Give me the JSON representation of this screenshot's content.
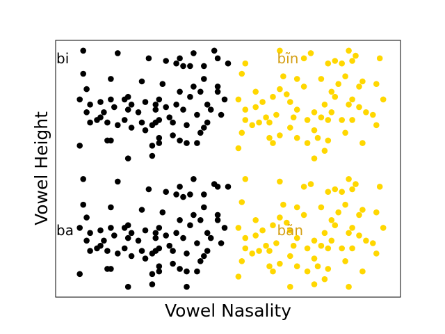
{
  "chart_data": {
    "type": "scatter",
    "xlabel": "Vowel Nasality",
    "ylabel": "Vowel Height",
    "xlim": [
      0,
      10
    ],
    "ylim": [
      0,
      10
    ],
    "grid": false,
    "ticks": false,
    "annotations": [
      {
        "text": "bi",
        "x": 0.0,
        "y": 9.3,
        "color": "#000000"
      },
      {
        "text": "ba",
        "x": 0.0,
        "y": 2.6,
        "color": "#000000"
      },
      {
        "text": "bĩn",
        "x": 6.4,
        "y": 9.3,
        "color": "#d4a017"
      },
      {
        "text": "bãn",
        "x": 6.4,
        "y": 2.6,
        "color": "#d4a017"
      }
    ],
    "series": [
      {
        "color": "#000000",
        "points": [
          [
            0.8,
            9.6
          ],
          [
            1.8,
            9.5
          ],
          [
            2.7,
            9.3
          ],
          [
            3.2,
            9.2
          ],
          [
            3.5,
            9.1
          ],
          [
            3.7,
            9.0
          ],
          [
            3.9,
            9.0
          ],
          [
            4.3,
            9.0
          ],
          [
            3.6,
            9.3
          ],
          [
            4.0,
            9.5
          ],
          [
            4.6,
            9.6
          ],
          [
            4.7,
            9.3
          ],
          [
            5.0,
            9.1
          ],
          [
            0.8,
            8.7
          ],
          [
            1.6,
            8.5
          ],
          [
            2.5,
            8.4
          ],
          [
            3.1,
            8.3
          ],
          [
            3.6,
            8.0
          ],
          [
            4.0,
            8.2
          ],
          [
            4.2,
            8.0
          ],
          [
            4.3,
            8.5
          ],
          [
            4.7,
            8.2
          ],
          [
            4.7,
            8.0
          ],
          [
            0.9,
            8.1
          ],
          [
            0.7,
            7.7
          ],
          [
            1.0,
            7.5
          ],
          [
            1.3,
            7.6
          ],
          [
            1.6,
            7.7
          ],
          [
            1.7,
            7.4
          ],
          [
            2.0,
            7.7
          ],
          [
            2.1,
            7.8
          ],
          [
            2.2,
            7.5
          ],
          [
            2.6,
            7.6
          ],
          [
            2.9,
            7.5
          ],
          [
            3.0,
            7.7
          ],
          [
            3.2,
            7.4
          ],
          [
            3.5,
            7.5
          ],
          [
            3.9,
            7.8
          ],
          [
            4.4,
            7.5
          ],
          [
            4.9,
            7.7
          ],
          [
            0.9,
            7.2
          ],
          [
            1.3,
            7.0
          ],
          [
            1.4,
            7.2
          ],
          [
            2.1,
            7.3
          ],
          [
            2.4,
            7.2
          ],
          [
            2.9,
            7.3
          ],
          [
            3.3,
            7.0
          ],
          [
            3.7,
            7.3
          ],
          [
            4.1,
            7.1
          ],
          [
            4.5,
            7.3
          ],
          [
            4.8,
            7.1
          ],
          [
            1.0,
            6.8
          ],
          [
            1.2,
            6.9
          ],
          [
            1.5,
            6.8
          ],
          [
            1.8,
            6.7
          ],
          [
            2.0,
            6.9
          ],
          [
            2.2,
            6.6
          ],
          [
            2.5,
            6.8
          ],
          [
            2.8,
            6.7
          ],
          [
            2.9,
            6.8
          ],
          [
            3.0,
            6.9
          ],
          [
            3.4,
            6.8
          ],
          [
            3.8,
            6.7
          ],
          [
            4.4,
            6.8
          ],
          [
            4.3,
            6.6
          ],
          [
            2.6,
            6.5
          ],
          [
            3.0,
            6.2
          ],
          [
            3.4,
            6.3
          ],
          [
            3.6,
            6.1
          ],
          [
            3.8,
            6.0
          ],
          [
            4.2,
            6.4
          ],
          [
            1.5,
            6.1
          ],
          [
            1.6,
            6.1
          ],
          [
            0.7,
            5.9
          ],
          [
            3.0,
            6.0
          ],
          [
            2.8,
            5.9
          ],
          [
            4.1,
            6.0
          ],
          [
            2.1,
            5.4
          ],
          [
            2.8,
            5.5
          ],
          [
            0.8,
            4.6
          ],
          [
            1.8,
            4.5
          ],
          [
            2.7,
            4.2
          ],
          [
            3.2,
            4.1
          ],
          [
            3.5,
            4.0
          ],
          [
            3.7,
            3.9
          ],
          [
            3.9,
            4.0
          ],
          [
            4.3,
            4.0
          ],
          [
            3.6,
            4.3
          ],
          [
            4.0,
            4.6
          ],
          [
            4.6,
            4.4
          ],
          [
            4.7,
            4.3
          ],
          [
            5.0,
            4.3
          ],
          [
            0.8,
            3.6
          ],
          [
            1.6,
            3.5
          ],
          [
            2.5,
            3.4
          ],
          [
            3.1,
            3.3
          ],
          [
            3.6,
            3.0
          ],
          [
            4.0,
            3.2
          ],
          [
            4.2,
            3.0
          ],
          [
            4.3,
            3.5
          ],
          [
            4.7,
            3.2
          ],
          [
            4.7,
            3.0
          ],
          [
            0.9,
            3.1
          ],
          [
            0.7,
            2.7
          ],
          [
            1.0,
            2.5
          ],
          [
            1.3,
            2.6
          ],
          [
            1.6,
            2.7
          ],
          [
            1.7,
            2.4
          ],
          [
            2.0,
            2.7
          ],
          [
            2.1,
            2.8
          ],
          [
            2.2,
            2.5
          ],
          [
            2.6,
            2.6
          ],
          [
            2.9,
            2.5
          ],
          [
            3.0,
            2.7
          ],
          [
            3.2,
            2.4
          ],
          [
            3.5,
            2.5
          ],
          [
            3.9,
            2.8
          ],
          [
            4.4,
            2.5
          ],
          [
            4.9,
            2.7
          ],
          [
            0.9,
            2.2
          ],
          [
            1.3,
            2.0
          ],
          [
            1.4,
            2.2
          ],
          [
            2.1,
            2.3
          ],
          [
            2.4,
            2.2
          ],
          [
            2.9,
            2.3
          ],
          [
            3.3,
            2.0
          ],
          [
            3.7,
            2.3
          ],
          [
            4.1,
            2.1
          ],
          [
            4.5,
            2.3
          ],
          [
            4.8,
            2.1
          ],
          [
            1.0,
            1.8
          ],
          [
            1.2,
            1.9
          ],
          [
            1.5,
            1.8
          ],
          [
            1.8,
            1.7
          ],
          [
            2.0,
            1.9
          ],
          [
            2.2,
            1.6
          ],
          [
            2.5,
            1.8
          ],
          [
            2.8,
            1.7
          ],
          [
            2.9,
            1.8
          ],
          [
            3.0,
            1.9
          ],
          [
            3.4,
            1.8
          ],
          [
            3.8,
            1.7
          ],
          [
            4.4,
            1.8
          ],
          [
            4.3,
            1.6
          ],
          [
            2.6,
            1.5
          ],
          [
            3.0,
            1.2
          ],
          [
            3.4,
            1.3
          ],
          [
            3.6,
            1.1
          ],
          [
            3.8,
            1.0
          ],
          [
            4.2,
            1.4
          ],
          [
            1.5,
            1.1
          ],
          [
            1.6,
            1.1
          ],
          [
            0.7,
            0.9
          ],
          [
            3.0,
            1.0
          ],
          [
            2.8,
            0.9
          ],
          [
            4.1,
            1.0
          ],
          [
            2.1,
            0.4
          ],
          [
            2.8,
            0.5
          ],
          [
            3.8,
            0.4
          ]
        ]
      },
      {
        "color": "#ffd700",
        "points": [
          [
            5.5,
            9.1
          ],
          [
            6.5,
            9.6
          ],
          [
            7.2,
            9.3
          ],
          [
            7.9,
            9.1
          ],
          [
            8.1,
            9.2
          ],
          [
            8.3,
            9.1
          ],
          [
            8.6,
            9.2
          ],
          [
            8.7,
            9.4
          ],
          [
            8.5,
            9.6
          ],
          [
            9.4,
            9.3
          ],
          [
            7.4,
            9.5
          ],
          [
            5.4,
            8.7
          ],
          [
            6.6,
            8.6
          ],
          [
            7.0,
            8.5
          ],
          [
            7.2,
            8.2
          ],
          [
            7.7,
            8.5
          ],
          [
            8.2,
            8.3
          ],
          [
            8.4,
            8.6
          ],
          [
            8.8,
            8.2
          ],
          [
            8.9,
            8.4
          ],
          [
            9.3,
            8.3
          ],
          [
            5.8,
            8.0
          ],
          [
            6.0,
            7.6
          ],
          [
            6.8,
            7.6
          ],
          [
            6.3,
            7.8
          ],
          [
            6.7,
            7.9
          ],
          [
            6.5,
            8.1
          ],
          [
            8.0,
            8.0
          ],
          [
            8.1,
            7.8
          ],
          [
            8.6,
            7.7
          ],
          [
            7.8,
            7.5
          ],
          [
            5.3,
            7.7
          ],
          [
            5.5,
            7.3
          ],
          [
            5.8,
            7.4
          ],
          [
            7.0,
            7.3
          ],
          [
            7.5,
            7.2
          ],
          [
            8.0,
            7.2
          ],
          [
            8.5,
            7.5
          ],
          [
            8.8,
            7.4
          ],
          [
            9.2,
            7.1
          ],
          [
            9.5,
            7.7
          ],
          [
            5.5,
            6.9
          ],
          [
            5.9,
            6.8
          ],
          [
            6.1,
            7.0
          ],
          [
            6.4,
            7.1
          ],
          [
            6.9,
            7.0
          ],
          [
            7.3,
            6.9
          ],
          [
            7.7,
            7.0
          ],
          [
            7.9,
            6.9
          ],
          [
            8.3,
            6.9
          ],
          [
            8.6,
            6.9
          ],
          [
            9.0,
            7.2
          ],
          [
            9.3,
            6.7
          ],
          [
            5.7,
            6.7
          ],
          [
            6.2,
            6.8
          ],
          [
            6.8,
            6.6
          ],
          [
            5.4,
            6.4
          ],
          [
            6.2,
            6.2
          ],
          [
            6.5,
            6.3
          ],
          [
            7.0,
            6.2
          ],
          [
            7.5,
            6.5
          ],
          [
            7.6,
            6.2
          ],
          [
            7.9,
            6.1
          ],
          [
            8.4,
            6.4
          ],
          [
            5.3,
            5.8
          ],
          [
            6.3,
            6.0
          ],
          [
            7.3,
            6.0
          ],
          [
            7.8,
            5.7
          ],
          [
            8.9,
            6.0
          ],
          [
            7.5,
            5.4
          ],
          [
            5.5,
            4.6
          ],
          [
            6.5,
            4.5
          ],
          [
            7.2,
            4.3
          ],
          [
            7.9,
            4.1
          ],
          [
            8.1,
            4.2
          ],
          [
            8.3,
            4.1
          ],
          [
            8.6,
            4.2
          ],
          [
            8.7,
            4.4
          ],
          [
            8.5,
            4.6
          ],
          [
            9.4,
            4.3
          ],
          [
            7.4,
            4.4
          ],
          [
            5.4,
            3.7
          ],
          [
            6.6,
            3.6
          ],
          [
            7.0,
            3.5
          ],
          [
            7.2,
            3.2
          ],
          [
            7.7,
            3.5
          ],
          [
            8.2,
            3.3
          ],
          [
            8.4,
            3.6
          ],
          [
            8.8,
            3.2
          ],
          [
            8.9,
            3.4
          ],
          [
            9.3,
            3.3
          ],
          [
            5.8,
            3.0
          ],
          [
            6.0,
            2.6
          ],
          [
            6.8,
            2.6
          ],
          [
            6.3,
            2.8
          ],
          [
            6.7,
            2.9
          ],
          [
            6.5,
            3.1
          ],
          [
            8.0,
            3.0
          ],
          [
            8.1,
            2.8
          ],
          [
            8.6,
            2.7
          ],
          [
            7.8,
            2.5
          ],
          [
            5.3,
            2.7
          ],
          [
            5.5,
            2.3
          ],
          [
            5.8,
            2.4
          ],
          [
            7.0,
            2.3
          ],
          [
            7.5,
            2.2
          ],
          [
            8.0,
            2.2
          ],
          [
            8.5,
            2.5
          ],
          [
            8.8,
            2.4
          ],
          [
            9.2,
            2.1
          ],
          [
            9.5,
            2.7
          ],
          [
            5.5,
            1.9
          ],
          [
            5.9,
            1.8
          ],
          [
            6.1,
            2.0
          ],
          [
            6.4,
            2.1
          ],
          [
            6.9,
            2.0
          ],
          [
            7.3,
            1.9
          ],
          [
            7.7,
            2.0
          ],
          [
            7.9,
            1.9
          ],
          [
            8.3,
            1.9
          ],
          [
            8.6,
            1.9
          ],
          [
            9.0,
            2.2
          ],
          [
            9.3,
            1.7
          ],
          [
            5.7,
            1.7
          ],
          [
            6.2,
            1.8
          ],
          [
            6.8,
            1.6
          ],
          [
            5.4,
            1.4
          ],
          [
            6.2,
            1.2
          ],
          [
            6.5,
            1.3
          ],
          [
            7.0,
            1.2
          ],
          [
            7.5,
            1.5
          ],
          [
            7.6,
            1.2
          ],
          [
            7.9,
            1.1
          ],
          [
            8.4,
            1.4
          ],
          [
            5.3,
            0.8
          ],
          [
            6.3,
            1.0
          ],
          [
            7.3,
            1.0
          ],
          [
            7.8,
            0.7
          ],
          [
            8.9,
            1.0
          ],
          [
            6.8,
            0.4
          ],
          [
            7.5,
            0.5
          ],
          [
            8.5,
            0.4
          ]
        ]
      }
    ]
  }
}
